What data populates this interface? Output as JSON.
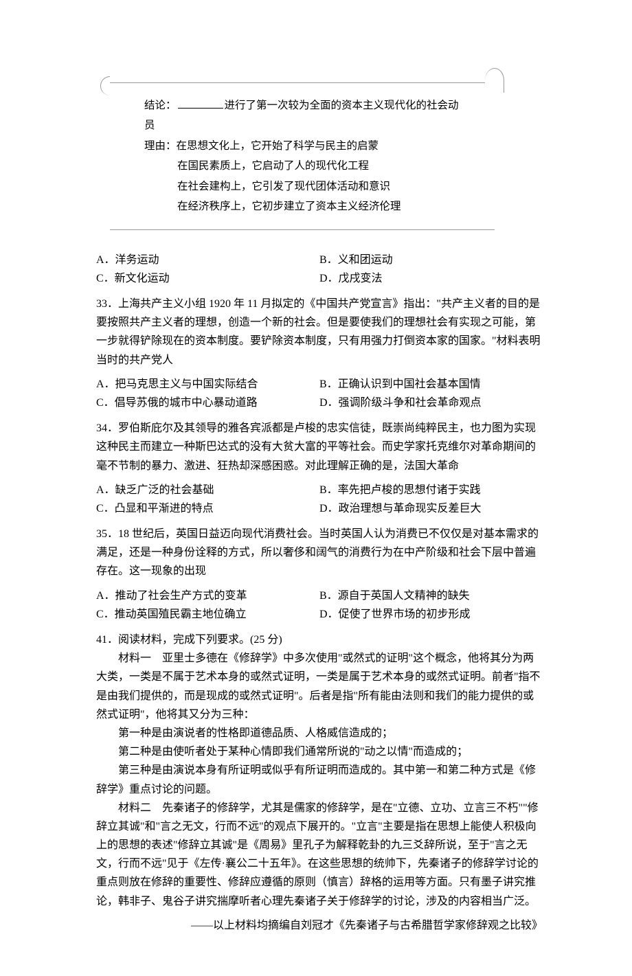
{
  "scroll_box": {
    "line1_prefix": "结论：",
    "line1_suffix": "进行了第一次较为全面的资本主义现代化的社会动员",
    "line2": "理由：在思想文化上，它开始了科学与民主的启蒙",
    "line3": "在国民素质上，它启动了人的现代化工程",
    "line4": "在社会建构上，它引发了现代团体活动和意识",
    "line5": "在经济秩序上，它初步建立了资本主义经济伦理"
  },
  "q32_options": {
    "a": "A．洋务运动",
    "b": "B．义和团运动",
    "c": "C．新文化运动",
    "d": "D．戊戌变法"
  },
  "q33": {
    "stem": "33．上海共产主义小组 1920 年 11 月拟定的《中国共产党宣言》指出：\"共产主义者的目的是要按照共产主义者的理想，创造一个新的社会。但是要使我们的理想社会有实现之可能，第一步就得铲除现在的资本制度。要铲除资本制度，只有用强力打倒资本家的国家。\"材料表明当时的共产党人",
    "a": "A．把马克思主义与中国实际结合",
    "b": "B．正确认识到中国社会基本国情",
    "c": "C．倡导苏俄的城市中心暴动道路",
    "d": "D．强调阶级斗争和社会革命观点"
  },
  "q34": {
    "stem": "34．罗伯斯庇尔及其领导的雅各宾派都是卢梭的忠实信徒，既崇尚纯粹民主，也力图为实现这种民主而建立一种斯巴达式的没有大贫大富的平等社会。而史学家托克维尔对革命期间的毫不节制的暴力、激进、狂热却深感困惑。对此理解正确的是，法国大革命",
    "a": "A．缺乏广泛的社会基础",
    "b": "B．率先把卢梭的思想付诸于实践",
    "c": "C．凸显和平渐进的特点",
    "d": "D．政治理想与革命现实反差巨大"
  },
  "q35": {
    "stem": "35．18 世纪后，英国日益迈向现代消费社会。当时英国人认为消费已不仅仅是对基本需求的满足，还是一种身份诠释的方式，所以奢侈和阔气的消费行为在中产阶级和社会下层中普遍存在。这一现象的出现",
    "a": "A．推动了社会生产方式的变革",
    "b": "B．源自于英国人文精神的缺失",
    "c": "C．推动英国殖民霸主地位确立",
    "d": "D．促使了世界市场的初步形成"
  },
  "q41": {
    "stem": "41．阅读材料，完成下列要求。(25 分)",
    "p1": "材料一　亚里士多德在《修辞学》中多次使用\"或然式的证明\"这个概念，他将其分为两大类，一类是不属于艺术本身的或然式证明，一类是属于艺术本身的或然式证明。前者\"指不是由我们提供的，而是现成的或然式证明\"。后者是指\"所有能由法则和我们的能力提供的或然式证明\"，他将其又分为三种：",
    "p2": "第一种是由演说者的性格即道德品质、人格威信造成的；",
    "p3": "第二种是由使听者处于某种心情即我们通常所说的\"动之以情\"而造成的；",
    "p4": "第三种是由演说本身有所证明或似乎有所证明而造成的。其中第一和第二种方式是《修辞学》重点讨论的问题。",
    "p5": "材料二　先秦诸子的修辞学，尤其是儒家的修辞学，是在\"立德、立功、立言三不朽\"\"修辞立其诚\"和\"言之无文，行而不远\"的观点下展开的。\"立言\"主要是指在思想上能使人积极向上的思想的表述\"修辞立其诚\"是《周易》里孔子为解释乾卦的九三爻辞所说，至于\"言之无文，行而不远\"见于《左传·襄公二十五年》。在这些思想的统帅下，先秦诸子的修辞学讨论的重点则放在修辞的重要性、修辞应遵循的原则（慎言）辞格的运用等方面。只有墨子讲究推论，韩非子、鬼谷子讲究揣摩听者心理先秦诸子关于修辞学的讨论，涉及的内容相当广泛。",
    "attribution": "——以上材料均摘编自刘冠才《先秦诸子与古希腊哲学家修辞观之比较》"
  }
}
